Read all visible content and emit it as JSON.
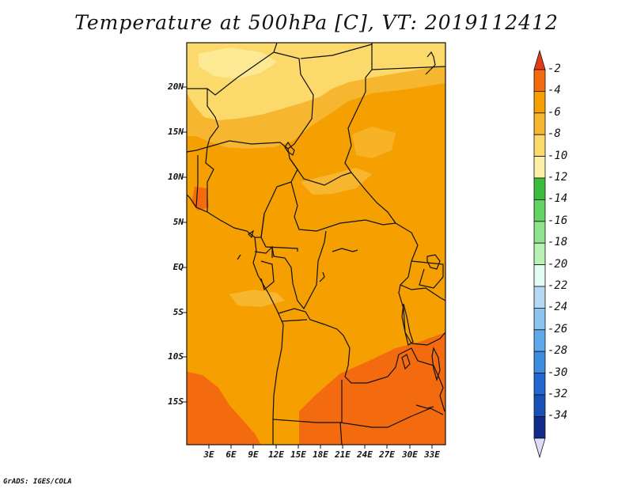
{
  "title": "Temperature at 500hPa [C], VT: 2019112412",
  "credit": "GrADS: IGES/COLA",
  "map": {
    "region": "Central Africa",
    "variable": "Temperature at 500hPa",
    "units": "C",
    "valid_time": "2019112412",
    "lat_labels": [
      "20N",
      "15N",
      "10N",
      "5N",
      "EQ",
      "5S",
      "10S",
      "15S"
    ],
    "lon_labels": [
      "3E",
      "6E",
      "9E",
      "12E",
      "15E",
      "18E",
      "21E",
      "24E",
      "27E",
      "30E",
      "33E"
    ]
  },
  "colorbar": {
    "labels": [
      "-2",
      "-4",
      "-6",
      "-8",
      "-10",
      "-12",
      "-14",
      "-16",
      "-18",
      "-20",
      "-22",
      "-24",
      "-26",
      "-28",
      "-30",
      "-32",
      "-34"
    ],
    "colors": [
      "#e23b1b",
      "#f46a0e",
      "#f5a000",
      "#f7b62f",
      "#fbd96a",
      "#fdf0a6",
      "#3cbc3c",
      "#63d363",
      "#8fe38d",
      "#b8f1b4",
      "#e3fbf3",
      "#b5d9f3",
      "#8cc4f0",
      "#5ea9ea",
      "#3c8ce0",
      "#2268d0",
      "#1750b7",
      "#0f2a88",
      "#dcdcf8"
    ]
  },
  "legend_colors": {
    "warm_top": "#e23b1b",
    "cold_bottom": "#dcdcf8",
    "background_field": "#f5a000"
  }
}
